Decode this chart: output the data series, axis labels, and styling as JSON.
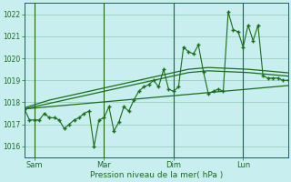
{
  "background_color": "#c8eef0",
  "grid_color": "#90c8b8",
  "line_color": "#1a6e1a",
  "xlabel": "Pression niveau de la mer( hPa )",
  "ylim": [
    1015.5,
    1022.5
  ],
  "yticks": [
    1016,
    1017,
    1018,
    1019,
    1020,
    1021,
    1022
  ],
  "xtick_labels": [
    "Sam",
    "Mar",
    "Dim",
    "Lun"
  ],
  "xtick_positions": [
    2,
    16,
    30,
    44
  ],
  "vline_positions": [
    2,
    16,
    30,
    44
  ],
  "num_points": 54,
  "main_line": [
    1017.7,
    1017.2,
    1017.2,
    1017.2,
    1017.5,
    1017.3,
    1017.3,
    1017.2,
    1016.8,
    1017.0,
    1017.2,
    1017.3,
    1017.5,
    1017.6,
    1016.0,
    1017.2,
    1017.3,
    1017.8,
    1016.7,
    1017.1,
    1017.8,
    1017.6,
    1018.1,
    1018.5,
    1018.7,
    1018.8,
    1019.0,
    1018.7,
    1019.5,
    1018.6,
    1018.5,
    1018.7,
    1020.5,
    1020.3,
    1020.2,
    1020.6,
    1019.4,
    1018.4,
    1018.5,
    1018.6,
    1018.5,
    1022.1,
    1021.3,
    1021.2,
    1020.5,
    1021.5,
    1020.8,
    1021.5,
    1019.2,
    1019.1,
    1019.1,
    1019.1,
    1019.0,
    1019.0
  ],
  "trend1": [
    1017.7,
    1017.75,
    1017.8,
    1017.85,
    1017.9,
    1017.95,
    1018.0,
    1018.05,
    1018.1,
    1018.15,
    1018.2,
    1018.25,
    1018.3,
    1018.35,
    1018.4,
    1018.45,
    1018.5,
    1018.55,
    1018.6,
    1018.65,
    1018.7,
    1018.75,
    1018.8,
    1018.85,
    1018.9,
    1018.95,
    1019.0,
    1019.05,
    1019.1,
    1019.15,
    1019.2,
    1019.25,
    1019.3,
    1019.35,
    1019.37,
    1019.39,
    1019.41,
    1019.43,
    1019.42,
    1019.41,
    1019.4,
    1019.39,
    1019.38,
    1019.37,
    1019.36,
    1019.35,
    1019.33,
    1019.31,
    1019.29,
    1019.27,
    1019.25,
    1019.23,
    1019.21,
    1019.19
  ],
  "trend2": [
    1017.75,
    1017.82,
    1017.89,
    1017.96,
    1018.03,
    1018.1,
    1018.15,
    1018.2,
    1018.25,
    1018.3,
    1018.35,
    1018.4,
    1018.45,
    1018.5,
    1018.55,
    1018.6,
    1018.65,
    1018.7,
    1018.75,
    1018.8,
    1018.85,
    1018.9,
    1018.95,
    1019.0,
    1019.05,
    1019.1,
    1019.15,
    1019.2,
    1019.25,
    1019.3,
    1019.35,
    1019.4,
    1019.45,
    1019.5,
    1019.52,
    1019.54,
    1019.56,
    1019.58,
    1019.57,
    1019.56,
    1019.55,
    1019.54,
    1019.53,
    1019.52,
    1019.51,
    1019.5,
    1019.48,
    1019.46,
    1019.44,
    1019.42,
    1019.4,
    1019.38,
    1019.36,
    1019.34
  ],
  "flat_line": [
    1017.7,
    1017.72,
    1017.74,
    1017.76,
    1017.78,
    1017.8,
    1017.82,
    1017.84,
    1017.86,
    1017.88,
    1017.9,
    1017.92,
    1017.94,
    1017.96,
    1017.98,
    1018.0,
    1018.02,
    1018.04,
    1018.06,
    1018.08,
    1018.1,
    1018.12,
    1018.14,
    1018.16,
    1018.18,
    1018.2,
    1018.22,
    1018.24,
    1018.26,
    1018.28,
    1018.3,
    1018.32,
    1018.34,
    1018.36,
    1018.38,
    1018.4,
    1018.42,
    1018.44,
    1018.46,
    1018.48,
    1018.5,
    1018.52,
    1018.54,
    1018.56,
    1018.58,
    1018.6,
    1018.62,
    1018.64,
    1018.66,
    1018.68,
    1018.7,
    1018.72,
    1018.74,
    1018.76
  ]
}
